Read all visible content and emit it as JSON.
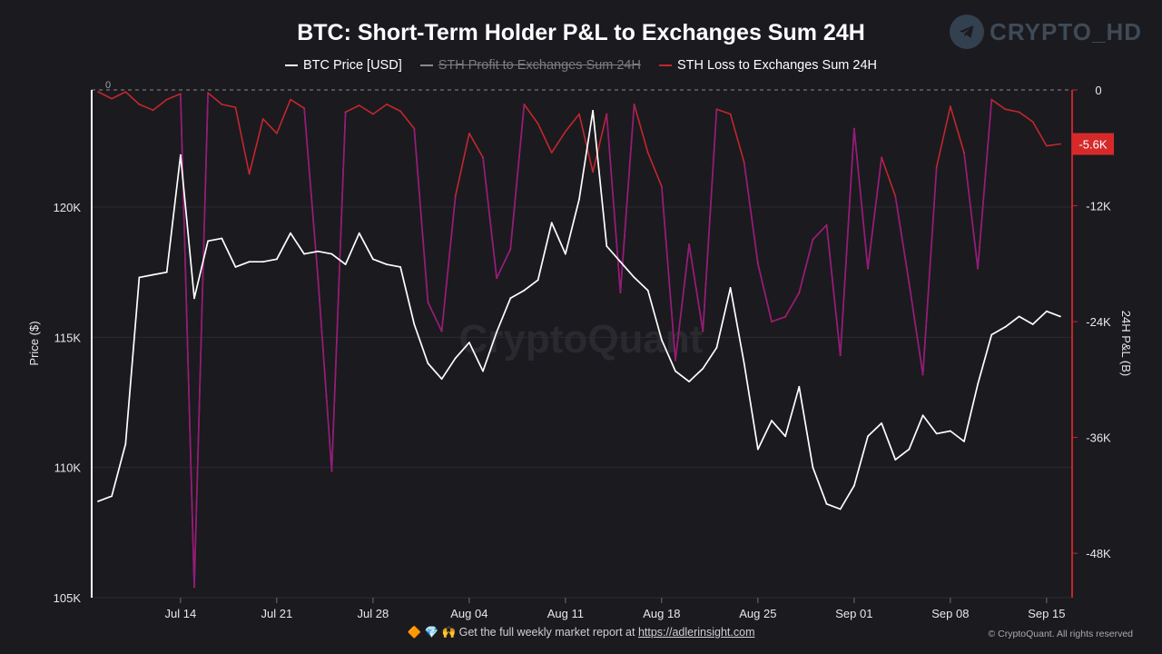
{
  "header": {
    "title": "BTC: Short-Term Holder P&L to Exchanges Sum 24H",
    "brand_watermark": "CRYPTO_HD",
    "center_watermark": "CryptoQuant"
  },
  "legend": [
    {
      "label": "BTC Price [USD]",
      "color": "#ffffff",
      "hidden": false
    },
    {
      "label": "STH Profit to Exchanges Sum 24H",
      "color": "#8a8a8f",
      "hidden": true
    },
    {
      "label": "STH Loss to Exchanges Sum 24H",
      "color": "#c0282e",
      "hidden": false
    }
  ],
  "footer": {
    "emoji": "🔶 💎 🙌",
    "text": "Get the full weekly market report at",
    "link": "https://adlerinsight.com",
    "copyright": "© CryptoQuant. All rights reserved"
  },
  "colors": {
    "background": "#1b1a1f",
    "price": "#ffffff",
    "loss": "#c0282e",
    "loss_deep": "#8c1a8c",
    "badge": "#d62a2a"
  },
  "chart_data": {
    "type": "line",
    "x_ticks": [
      "Jul 14",
      "Jul 21",
      "Jul 28",
      "Aug 04",
      "Aug 11",
      "Aug 18",
      "Aug 25",
      "Sep 01",
      "Sep 08",
      "Sep 15"
    ],
    "y_left": {
      "label": "Price ($)",
      "ticks": [
        "120K",
        "115K",
        "110K",
        "105K"
      ],
      "range": [
        105000,
        124500
      ]
    },
    "y_right": {
      "label": "24H P&L (B)",
      "ticks": [
        "0",
        "-12K",
        "-24K",
        "-36K",
        "-48K"
      ],
      "range": [
        -52600,
        0
      ],
      "zero_label": "0"
    },
    "last_value_badge": "-5.6K",
    "series": [
      {
        "name": "BTC Price [USD]",
        "axis": "left",
        "color": "#ffffff",
        "x": [
          "Jul 08",
          "Jul 09",
          "Jul 10",
          "Jul 11",
          "Jul 12",
          "Jul 13",
          "Jul 14",
          "Jul 15",
          "Jul 16",
          "Jul 17",
          "Jul 18",
          "Jul 19",
          "Jul 20",
          "Jul 21",
          "Jul 22",
          "Jul 23",
          "Jul 24",
          "Jul 25",
          "Jul 26",
          "Jul 27",
          "Jul 28",
          "Jul 29",
          "Jul 30",
          "Jul 31",
          "Aug 01",
          "Aug 02",
          "Aug 03",
          "Aug 04",
          "Aug 05",
          "Aug 06",
          "Aug 07",
          "Aug 08",
          "Aug 09",
          "Aug 10",
          "Aug 11",
          "Aug 12",
          "Aug 13",
          "Aug 14",
          "Aug 15",
          "Aug 16",
          "Aug 17",
          "Aug 18",
          "Aug 19",
          "Aug 20",
          "Aug 21",
          "Aug 22",
          "Aug 23",
          "Aug 24",
          "Aug 25",
          "Aug 26",
          "Aug 27",
          "Aug 28",
          "Aug 29",
          "Aug 30",
          "Aug 31",
          "Sep 01",
          "Sep 02",
          "Sep 03",
          "Sep 04",
          "Sep 05",
          "Sep 06",
          "Sep 07",
          "Sep 08",
          "Sep 09",
          "Sep 10",
          "Sep 11",
          "Sep 12",
          "Sep 13",
          "Sep 14",
          "Sep 15",
          "Sep 16"
        ],
        "values": [
          108700,
          108900,
          110900,
          117300,
          117400,
          117500,
          122000,
          116500,
          118700,
          118800,
          117700,
          117900,
          117900,
          118000,
          119000,
          118200,
          118300,
          118200,
          117800,
          119000,
          118000,
          117800,
          117700,
          115500,
          114000,
          113400,
          114200,
          114800,
          113700,
          115200,
          116500,
          116800,
          117200,
          119400,
          118200,
          120300,
          123700,
          118500,
          117900,
          117300,
          116800,
          114900,
          113700,
          113300,
          113800,
          114600,
          116900,
          114000,
          110700,
          111800,
          111200,
          113100,
          110000,
          108600,
          108400,
          109300,
          111200,
          111700,
          110300,
          110700,
          112000,
          111300,
          111400,
          111000,
          113200,
          115100,
          115400,
          115800,
          115500,
          116000,
          115800
        ]
      },
      {
        "name": "STH Loss to Exchanges Sum 24H",
        "axis": "right",
        "color": "#c0282e",
        "x": [
          "Jul 08",
          "Jul 09",
          "Jul 10",
          "Jul 11",
          "Jul 12",
          "Jul 13",
          "Jul 14",
          "Jul 15",
          "Jul 16",
          "Jul 17",
          "Jul 18",
          "Jul 19",
          "Jul 20",
          "Jul 21",
          "Jul 22",
          "Jul 23",
          "Jul 24",
          "Jul 25",
          "Jul 26",
          "Jul 27",
          "Jul 28",
          "Jul 29",
          "Jul 30",
          "Jul 31",
          "Aug 01",
          "Aug 02",
          "Aug 03",
          "Aug 04",
          "Aug 05",
          "Aug 06",
          "Aug 07",
          "Aug 08",
          "Aug 09",
          "Aug 10",
          "Aug 11",
          "Aug 12",
          "Aug 13",
          "Aug 14",
          "Aug 15",
          "Aug 16",
          "Aug 17",
          "Aug 18",
          "Aug 19",
          "Aug 20",
          "Aug 21",
          "Aug 22",
          "Aug 23",
          "Aug 24",
          "Aug 25",
          "Aug 26",
          "Aug 27",
          "Aug 28",
          "Aug 29",
          "Aug 30",
          "Aug 31",
          "Sep 01",
          "Sep 02",
          "Sep 03",
          "Sep 04",
          "Sep 05",
          "Sep 06",
          "Sep 07",
          "Sep 08",
          "Sep 09",
          "Sep 10",
          "Sep 11",
          "Sep 12",
          "Sep 13",
          "Sep 14",
          "Sep 15",
          "Sep 16"
        ],
        "values": [
          -200,
          -900,
          -200,
          -1500,
          -2100,
          -1000,
          -400,
          -51500,
          -300,
          -1500,
          -1800,
          -8700,
          -3000,
          -4500,
          -1000,
          -1900,
          -19500,
          -39500,
          -2300,
          -1600,
          -2500,
          -1500,
          -2200,
          -4000,
          -22000,
          -25000,
          -11000,
          -4500,
          -7000,
          -19500,
          -16500,
          -1500,
          -3500,
          -6500,
          -4300,
          -2500,
          -8500,
          -2500,
          -21000,
          -1500,
          -6500,
          -10000,
          -28000,
          -16000,
          -25000,
          -2000,
          -2500,
          -7500,
          -18000,
          -24000,
          -23500,
          -21000,
          -15500,
          -14000,
          -27500,
          -4000,
          -18500,
          -7000,
          -11000,
          -20000,
          -29500,
          -8000,
          -1700,
          -6500,
          -18500,
          -1000,
          -2000,
          -2300,
          -3300,
          -5800,
          -5600
        ]
      }
    ]
  }
}
